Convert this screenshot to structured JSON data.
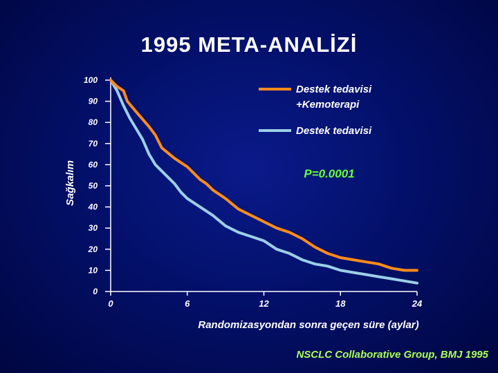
{
  "chart_data": {
    "type": "line",
    "title": "1995 META-ANALİZİ",
    "ylabel": "Sağkalım",
    "xlabel": "Randomizasyondan sonra geçen süre (aylar)",
    "ylim": [
      0,
      100
    ],
    "xlim": [
      0,
      24
    ],
    "yticks": [
      "0",
      "10",
      "20",
      "30",
      "40",
      "50",
      "60",
      "70",
      "80",
      "90",
      "100"
    ],
    "xticks": [
      "0",
      "6",
      "12",
      "18",
      "24"
    ],
    "legend_position": "top-right",
    "annotation": "P=0.0001",
    "citation": "NSCLC Collaborative Group, BMJ 1995",
    "series": [
      {
        "name": "Destek tedavisi+Kemoterapi",
        "color": "#ff8c1a",
        "points": [
          [
            0,
            100
          ],
          [
            0.5,
            97
          ],
          [
            1,
            95
          ],
          [
            1.3,
            90
          ],
          [
            2,
            85
          ],
          [
            3,
            78
          ],
          [
            3.5,
            74
          ],
          [
            4,
            68
          ],
          [
            5,
            63
          ],
          [
            6,
            59
          ],
          [
            6.5,
            56
          ],
          [
            7,
            53
          ],
          [
            7.5,
            51
          ],
          [
            8,
            48
          ],
          [
            9,
            44
          ],
          [
            10,
            39
          ],
          [
            11,
            36
          ],
          [
            12,
            33
          ],
          [
            13,
            30
          ],
          [
            14,
            28
          ],
          [
            15,
            25
          ],
          [
            16,
            21
          ],
          [
            17,
            18
          ],
          [
            18,
            16
          ],
          [
            19,
            15
          ],
          [
            20,
            14
          ],
          [
            21,
            13
          ],
          [
            22,
            11
          ],
          [
            23,
            10
          ],
          [
            24,
            10
          ]
        ]
      },
      {
        "name": "Destek tedavisi",
        "color": "#9ccfe6",
        "points": [
          [
            0,
            100
          ],
          [
            0.5,
            95
          ],
          [
            1,
            88
          ],
          [
            1.5,
            82
          ],
          [
            2,
            77
          ],
          [
            2.5,
            72
          ],
          [
            3,
            65
          ],
          [
            3.5,
            60
          ],
          [
            4,
            57
          ],
          [
            4.5,
            54
          ],
          [
            5,
            51
          ],
          [
            5.5,
            47
          ],
          [
            6,
            44
          ],
          [
            7,
            40
          ],
          [
            8,
            36
          ],
          [
            9,
            31
          ],
          [
            10,
            28
          ],
          [
            11,
            26
          ],
          [
            12,
            24
          ],
          [
            12.5,
            22
          ],
          [
            13,
            20
          ],
          [
            14,
            18
          ],
          [
            15,
            15
          ],
          [
            16,
            13
          ],
          [
            17,
            12
          ],
          [
            18,
            10
          ],
          [
            19,
            9
          ],
          [
            20,
            8
          ],
          [
            21,
            7
          ],
          [
            22,
            6
          ],
          [
            23,
            5
          ],
          [
            24,
            4
          ]
        ]
      }
    ]
  }
}
